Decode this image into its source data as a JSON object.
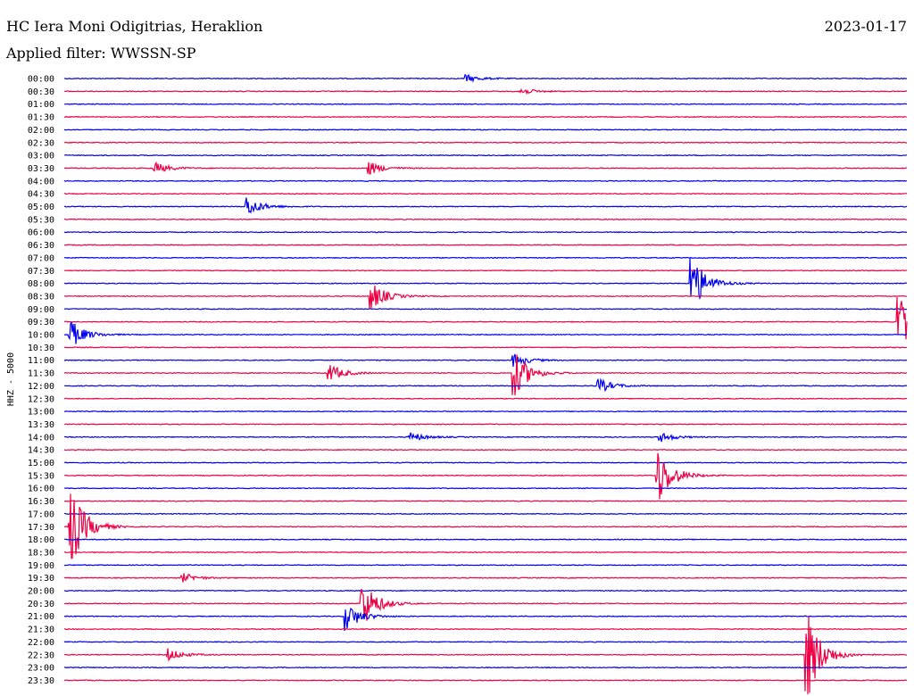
{
  "header": {
    "station": "HC Iera Moni Odigitrias, Heraklion",
    "date": "2023-01-17",
    "filter": "Applied filter: WWSSN-SP"
  },
  "chart_data": {
    "type": "line",
    "ylabel": "HHZ - 5000",
    "colors": [
      "#0000ee",
      "#ee0044"
    ],
    "rows": [
      "00:00",
      "00:30",
      "01:00",
      "01:30",
      "02:00",
      "02:30",
      "03:00",
      "03:30",
      "04:00",
      "04:30",
      "05:00",
      "05:30",
      "06:00",
      "06:30",
      "07:00",
      "07:30",
      "08:00",
      "08:30",
      "09:00",
      "09:30",
      "10:00",
      "10:30",
      "11:00",
      "11:30",
      "12:00",
      "12:30",
      "13:00",
      "13:30",
      "14:00",
      "14:30",
      "15:00",
      "15:30",
      "16:00",
      "16:30",
      "17:00",
      "17:30",
      "18:00",
      "18:30",
      "19:00",
      "19:30",
      "20:00",
      "20:30",
      "21:00",
      "21:30",
      "22:00",
      "22:30",
      "23:00",
      "23:30"
    ],
    "minutes_per_row": 30,
    "events": [
      {
        "row": 0,
        "minute": 14.3,
        "amp": 0.3
      },
      {
        "row": 1,
        "minute": 16.2,
        "amp": 0.3
      },
      {
        "row": 7,
        "minute": 3.2,
        "amp": 0.5
      },
      {
        "row": 7,
        "minute": 10.8,
        "amp": 0.6
      },
      {
        "row": 10,
        "minute": 6.5,
        "amp": 0.8
      },
      {
        "row": 16,
        "minute": 22.3,
        "amp": 2.5
      },
      {
        "row": 17,
        "minute": 10.9,
        "amp": 1.2
      },
      {
        "row": 19,
        "minute": 29.7,
        "amp": 2.5
      },
      {
        "row": 20,
        "minute": 0.2,
        "amp": 1.2
      },
      {
        "row": 22,
        "minute": 16.0,
        "amp": 0.5
      },
      {
        "row": 23,
        "minute": 9.4,
        "amp": 0.8
      },
      {
        "row": 23,
        "minute": 16.0,
        "amp": 2.0
      },
      {
        "row": 24,
        "minute": 19.0,
        "amp": 0.6
      },
      {
        "row": 28,
        "minute": 12.3,
        "amp": 0.4
      },
      {
        "row": 28,
        "minute": 21.2,
        "amp": 0.4
      },
      {
        "row": 31,
        "minute": 21.1,
        "amp": 2.5
      },
      {
        "row": 35,
        "minute": 0.2,
        "amp": 3.5
      },
      {
        "row": 39,
        "minute": 4.2,
        "amp": 0.4
      },
      {
        "row": 41,
        "minute": 10.6,
        "amp": 2.0
      },
      {
        "row": 42,
        "minute": 10.0,
        "amp": 1.2
      },
      {
        "row": 45,
        "minute": 3.7,
        "amp": 0.5
      },
      {
        "row": 45,
        "minute": 26.4,
        "amp": 4.0
      }
    ]
  }
}
